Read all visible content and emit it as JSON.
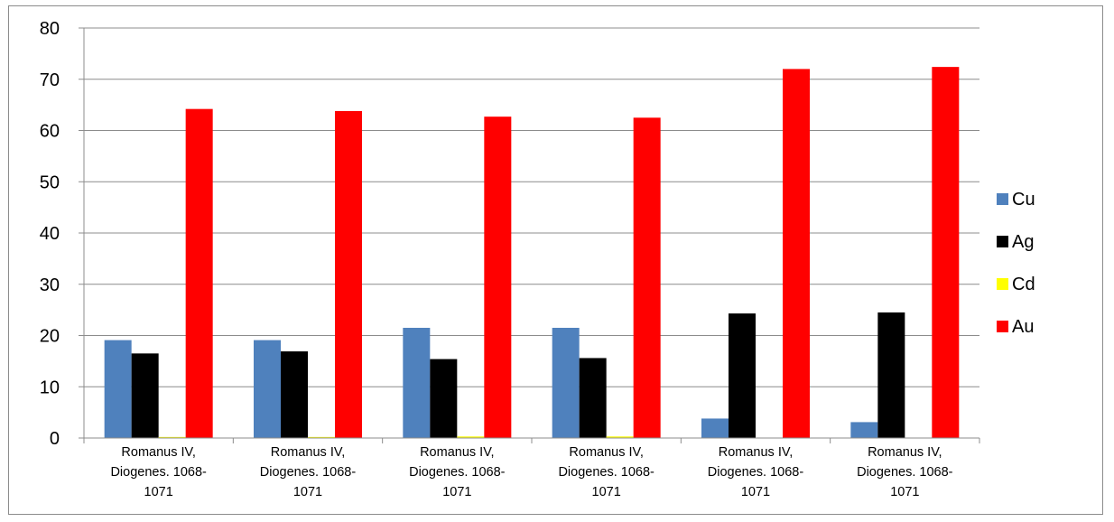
{
  "chart_data": {
    "type": "bar",
    "title": "",
    "xlabel": "",
    "ylabel": "",
    "ylim": [
      0,
      80
    ],
    "yticks": [
      0,
      10,
      20,
      30,
      40,
      50,
      60,
      70,
      80
    ],
    "grid": true,
    "legend_position": "right",
    "categories": [
      [
        "Romanus IV,",
        "Diogenes. 1068-",
        "1071"
      ],
      [
        "Romanus IV,",
        "Diogenes. 1068-",
        "1071"
      ],
      [
        "Romanus IV,",
        "Diogenes. 1068-",
        "1071"
      ],
      [
        "Romanus IV,",
        "Diogenes. 1068-",
        "1071"
      ],
      [
        "Romanus IV,",
        "Diogenes. 1068-",
        "1071"
      ],
      [
        "Romanus IV,",
        "Diogenes. 1068-",
        "1071"
      ]
    ],
    "series": [
      {
        "name": "Cu",
        "color": "#4f81bd",
        "values": [
          19.1,
          19.1,
          21.5,
          21.5,
          3.8,
          3.1
        ]
      },
      {
        "name": "Ag",
        "color": "#000000",
        "values": [
          16.5,
          16.9,
          15.4,
          15.6,
          24.3,
          24.5
        ]
      },
      {
        "name": "Cd",
        "color": "#ffff00",
        "values": [
          0.2,
          0.2,
          0.3,
          0.3,
          0.0,
          0.0
        ]
      },
      {
        "name": "Au",
        "color": "#ff0000",
        "values": [
          64.2,
          63.8,
          62.7,
          62.5,
          72.0,
          72.4
        ]
      }
    ]
  }
}
